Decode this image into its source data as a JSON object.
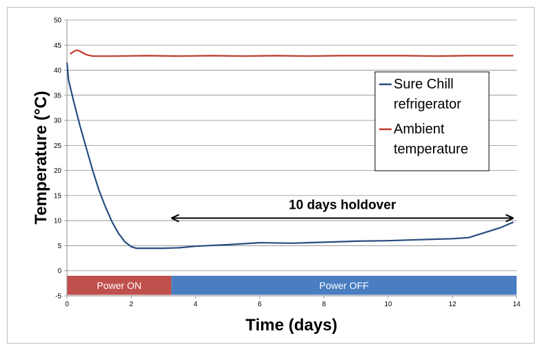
{
  "chart_data": {
    "type": "line",
    "xlabel": "Time (days)",
    "ylabel": "Temperature (°C)",
    "xlim": [
      0,
      14
    ],
    "ylim": [
      -5,
      50
    ],
    "x_ticks": [
      0,
      2,
      4,
      6,
      8,
      10,
      12,
      14
    ],
    "y_ticks": [
      -5,
      0,
      5,
      10,
      15,
      20,
      25,
      30,
      35,
      40,
      45,
      50
    ],
    "grid": "horizontal",
    "legend_position": "top-right",
    "series": [
      {
        "name": "Sure Chill refrigerator",
        "color": "#254C7E",
        "points": [
          [
            0,
            41.5
          ],
          [
            0.05,
            38
          ],
          [
            0.2,
            34
          ],
          [
            0.4,
            29
          ],
          [
            0.6,
            24.5
          ],
          [
            0.8,
            20
          ],
          [
            1.0,
            16
          ],
          [
            1.2,
            12.7
          ],
          [
            1.4,
            9.8
          ],
          [
            1.6,
            7.5
          ],
          [
            1.8,
            5.8
          ],
          [
            2.0,
            4.8
          ],
          [
            2.15,
            4.5
          ],
          [
            2.5,
            4.5
          ],
          [
            3.0,
            4.5
          ],
          [
            3.5,
            4.6
          ],
          [
            4.0,
            4.9
          ],
          [
            5.0,
            5.2
          ],
          [
            6.0,
            5.6
          ],
          [
            7.0,
            5.5
          ],
          [
            8.0,
            5.7
          ],
          [
            9.0,
            5.9
          ],
          [
            10.0,
            6.0
          ],
          [
            11.0,
            6.2
          ],
          [
            12.0,
            6.4
          ],
          [
            12.5,
            6.6
          ],
          [
            13.0,
            7.6
          ],
          [
            13.5,
            8.6
          ],
          [
            13.9,
            9.7
          ]
        ]
      },
      {
        "name": "Ambient temperature",
        "color": "#C0392B",
        "points": [
          [
            0.1,
            43.2
          ],
          [
            0.2,
            43.7
          ],
          [
            0.3,
            44.0
          ],
          [
            0.4,
            43.8
          ],
          [
            0.6,
            43.1
          ],
          [
            0.8,
            42.8
          ],
          [
            1.5,
            42.8
          ],
          [
            2.5,
            42.9
          ],
          [
            3.5,
            42.8
          ],
          [
            4.5,
            42.9
          ],
          [
            5.5,
            42.8
          ],
          [
            6.5,
            42.9
          ],
          [
            7.5,
            42.8
          ],
          [
            8.5,
            42.9
          ],
          [
            9.5,
            42.9
          ],
          [
            10.5,
            42.9
          ],
          [
            11.5,
            42.8
          ],
          [
            12.5,
            42.9
          ],
          [
            13.5,
            42.9
          ],
          [
            13.9,
            42.9
          ]
        ]
      }
    ],
    "legend": [
      "Sure Chill refrigerator",
      "Ambient temperature"
    ],
    "legend_lines": [
      [
        "Sure Chill",
        "refrigerator"
      ],
      [
        "Ambient",
        "temperature"
      ]
    ],
    "bands": [
      {
        "label": "Power ON",
        "x_start": 0,
        "x_end": 3.25,
        "color": "#C0504D"
      },
      {
        "label": "Power OFF",
        "x_start": 3.25,
        "x_end": 14,
        "color": "#4A7EC2"
      }
    ],
    "annotation": {
      "text": "10 days holdover",
      "x_start": 3.25,
      "x_end": 13.9,
      "y": 10.5
    }
  }
}
